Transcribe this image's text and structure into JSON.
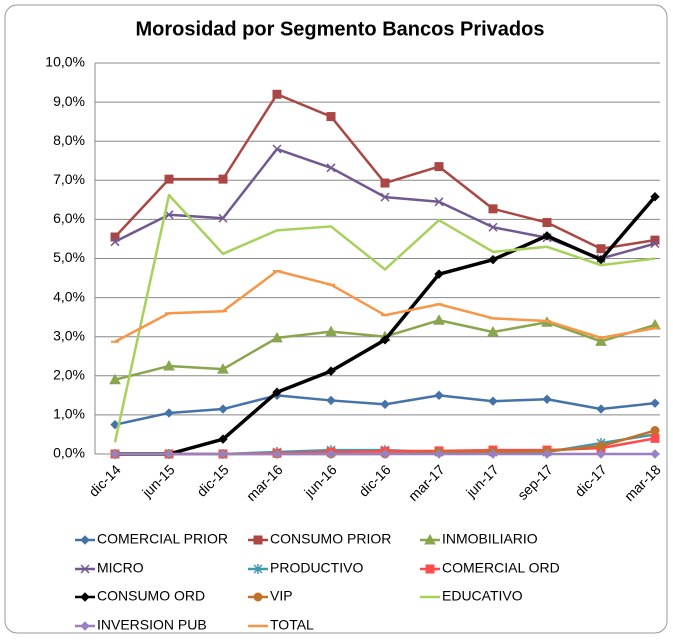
{
  "chart_data": {
    "type": "line",
    "title": "Morosidad por Segmento Bancos Privados",
    "categories": [
      "dic-14",
      "jun-15",
      "dic-15",
      "mar-16",
      "jun-16",
      "dic-16",
      "mar-17",
      "jun-17",
      "sep-17",
      "dic-17",
      "mar-18"
    ],
    "ylim": [
      0,
      10
    ],
    "yticks": [
      {
        "value": 0,
        "label": "0,0%"
      },
      {
        "value": 1,
        "label": "1,0%"
      },
      {
        "value": 2,
        "label": "2,0%"
      },
      {
        "value": 3,
        "label": "3,0%"
      },
      {
        "value": 4,
        "label": "4,0%"
      },
      {
        "value": 5,
        "label": "5,0%"
      },
      {
        "value": 6,
        "label": "6,0%"
      },
      {
        "value": 7,
        "label": "7,0%"
      },
      {
        "value": 8,
        "label": "8,0%"
      },
      {
        "value": 9,
        "label": "9,0%"
      },
      {
        "value": 10,
        "label": "10,0%"
      }
    ],
    "grid": true,
    "legend": "bottom",
    "series": [
      {
        "name": "COMERCIAL PRIOR",
        "color": "#4572a7",
        "marker": "diamond",
        "values": [
          0.75,
          1.05,
          1.15,
          1.5,
          1.37,
          1.27,
          1.5,
          1.35,
          1.4,
          1.15,
          1.3
        ]
      },
      {
        "name": "CONSUMO PRIOR",
        "color": "#aa4643",
        "marker": "square",
        "values": [
          5.55,
          7.03,
          7.03,
          9.2,
          8.63,
          6.93,
          7.35,
          6.27,
          5.92,
          5.25,
          5.47
        ]
      },
      {
        "name": "INMOBILIARIO",
        "color": "#89a54e",
        "marker": "triangle",
        "values": [
          1.9,
          2.25,
          2.17,
          2.97,
          3.13,
          3.0,
          3.42,
          3.12,
          3.37,
          2.88,
          3.3
        ]
      },
      {
        "name": "MICRO",
        "color": "#71588f",
        "marker": "x",
        "values": [
          5.43,
          6.12,
          6.03,
          7.8,
          7.32,
          6.57,
          6.45,
          5.8,
          5.53,
          5.0,
          5.38
        ]
      },
      {
        "name": "PRODUCTIVO",
        "color": "#4198af",
        "marker": "star",
        "values": [
          0,
          0,
          0,
          0.05,
          0.1,
          0.1,
          0.05,
          0.05,
          0.05,
          0.28,
          0.5
        ]
      },
      {
        "name": "COMERCIAL ORD",
        "color": "#ff4b4b",
        "marker": "square",
        "values": [
          0,
          0,
          0,
          0.02,
          0.05,
          0.07,
          0.08,
          0.1,
          0.1,
          0.15,
          0.4
        ]
      },
      {
        "name": "CONSUMO ORD",
        "color": "#000000",
        "marker": "diamond",
        "values": [
          0,
          0,
          0.38,
          1.58,
          2.12,
          2.92,
          4.6,
          4.97,
          5.58,
          4.97,
          6.58
        ]
      },
      {
        "name": "VIP",
        "color": "#c0712a",
        "marker": "circle",
        "values": [
          0,
          0,
          0,
          0,
          0,
          0,
          0.05,
          0.05,
          0.07,
          0.2,
          0.6
        ]
      },
      {
        "name": "EDUCATIVO",
        "color": "#a6d15a",
        "marker": "none",
        "values": [
          0.3,
          6.62,
          5.12,
          5.72,
          5.82,
          4.72,
          5.98,
          5.17,
          5.3,
          4.83,
          5.0
        ]
      },
      {
        "name": "INVERSION PUB",
        "color": "#9b7fc3",
        "marker": "diamond",
        "values": [
          0,
          0,
          0,
          0,
          0,
          0,
          0,
          0,
          0,
          0,
          0
        ]
      },
      {
        "name": "TOTAL",
        "color": "#f79646",
        "marker": "dash",
        "values": [
          2.87,
          3.6,
          3.65,
          4.68,
          4.33,
          3.55,
          3.83,
          3.47,
          3.4,
          2.97,
          3.22
        ]
      }
    ]
  }
}
